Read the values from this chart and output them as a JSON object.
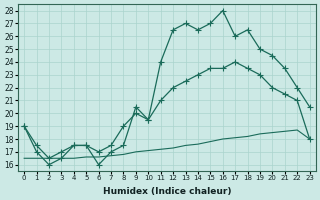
{
  "xlabel": "Humidex (Indice chaleur)",
  "bg_color": "#cce9e5",
  "grid_color": "#aad4ce",
  "line_color": "#1a6b5a",
  "xlim": [
    -0.5,
    23.5
  ],
  "ylim": [
    15.5,
    28.5
  ],
  "yticks": [
    16,
    17,
    18,
    19,
    20,
    21,
    22,
    23,
    24,
    25,
    26,
    27,
    28
  ],
  "xticks": [
    0,
    1,
    2,
    3,
    4,
    5,
    6,
    7,
    8,
    9,
    10,
    11,
    12,
    13,
    14,
    15,
    16,
    17,
    18,
    19,
    20,
    21,
    22,
    23
  ],
  "line1_x": [
    0,
    1,
    2,
    3,
    4,
    5,
    6,
    7,
    8,
    9,
    10,
    11,
    12,
    13,
    14,
    15,
    16,
    17,
    18,
    19,
    20,
    21,
    22,
    23
  ],
  "line1_y": [
    19,
    17,
    16,
    16.5,
    17.5,
    17.5,
    16,
    17,
    17.5,
    20.5,
    19.5,
    24,
    26.5,
    27,
    26.5,
    27,
    28,
    26,
    26.5,
    25,
    24.5,
    23.5,
    22,
    20.5
  ],
  "line2_x": [
    0,
    1,
    2,
    3,
    4,
    5,
    6,
    7,
    8,
    9,
    10,
    11,
    12,
    13,
    14,
    15,
    16,
    17,
    18,
    19,
    20,
    21,
    22,
    23
  ],
  "line2_y": [
    19,
    17.5,
    16.5,
    17,
    17.5,
    17.5,
    17,
    17.5,
    19,
    20,
    19.5,
    21,
    22,
    22.5,
    23,
    23.5,
    23.5,
    24,
    23.5,
    23,
    22,
    21.5,
    21,
    18
  ],
  "line3_x": [
    0,
    1,
    2,
    3,
    4,
    5,
    6,
    7,
    8,
    9,
    10,
    11,
    12,
    13,
    14,
    15,
    16,
    17,
    18,
    19,
    20,
    21,
    22,
    23
  ],
  "line3_y": [
    16.5,
    16.5,
    16.5,
    16.5,
    16.5,
    16.6,
    16.6,
    16.7,
    16.8,
    17.0,
    17.1,
    17.2,
    17.3,
    17.5,
    17.6,
    17.8,
    18.0,
    18.1,
    18.2,
    18.4,
    18.5,
    18.6,
    18.7,
    18
  ]
}
